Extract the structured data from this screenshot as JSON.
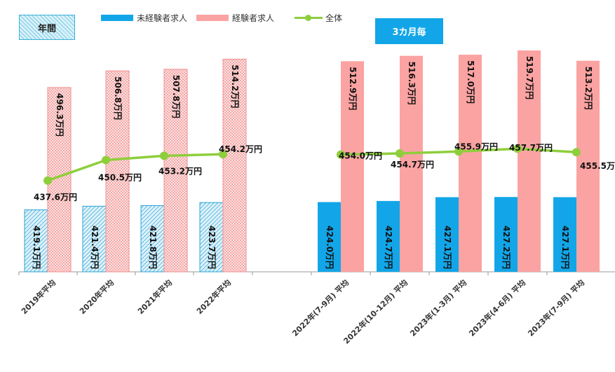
{
  "badges": {
    "annual": "年間",
    "quarterly": "3カ月毎"
  },
  "legend": {
    "inexperienced": "未経験者求人",
    "experienced": "経験者求人",
    "overall": "全体"
  },
  "colors": {
    "inexperienced": "#12a6e8",
    "experienced": "#fba3a2",
    "overall": "#8ece3c",
    "annual_blue_fill": "#dff2fa",
    "annual_blue_stroke": "#2aa4d6",
    "annual_red_fill": "#fde3e3",
    "annual_red_stroke": "#f08f8f",
    "axis": "#999999"
  },
  "chart_data": {
    "type": "bar",
    "categories": [
      "2019年平均",
      "2020年平均",
      "2021年平均",
      "2022年平均",
      "2022年(7-9月) 平均",
      "2022年(10-12月) 平均",
      "2023年(1-3月) 平均",
      "2023年(4-6月) 平均",
      "2023年(7-9月) 平均"
    ],
    "groups": [
      {
        "label": "年間",
        "category_indices": [
          0,
          1,
          2,
          3
        ]
      },
      {
        "label": "3カ月毎",
        "category_indices": [
          4,
          5,
          6,
          7,
          8
        ]
      }
    ],
    "series": [
      {
        "name": "未経験者求人",
        "type": "bar",
        "values": [
          419.1,
          421.4,
          421.8,
          423.7,
          424.0,
          424.7,
          427.1,
          427.2,
          427.1
        ],
        "labels": [
          "419.1万円",
          "421.4万円",
          "421.8万円",
          "423.7万円",
          "424.0万円",
          "424.7万円",
          "427.1万円",
          "427.2万円",
          "427.1万円"
        ]
      },
      {
        "name": "経験者求人",
        "type": "bar",
        "values": [
          496.3,
          506.8,
          507.8,
          514.2,
          512.9,
          516.3,
          517.0,
          519.7,
          513.2
        ],
        "labels": [
          "496.3万円",
          "506.8万円",
          "507.8万円",
          "514.2万円",
          "512.9万円",
          "516.3万円",
          "517.0万円",
          "519.7万円",
          "513.2万円"
        ]
      },
      {
        "name": "全体",
        "type": "line",
        "values": [
          437.6,
          450.5,
          453.2,
          454.2,
          454.0,
          454.7,
          455.9,
          457.7,
          455.5
        ],
        "labels": [
          "437.6万円",
          "450.5万円",
          "453.2万円",
          "454.2万円",
          "454.0万円",
          "454.7万円",
          "455.9万円",
          "457.7万円",
          "455.5万円"
        ]
      }
    ],
    "unit": "万円",
    "ylim": [
      380,
      525
    ],
    "grid": false,
    "legend_position": "top"
  }
}
